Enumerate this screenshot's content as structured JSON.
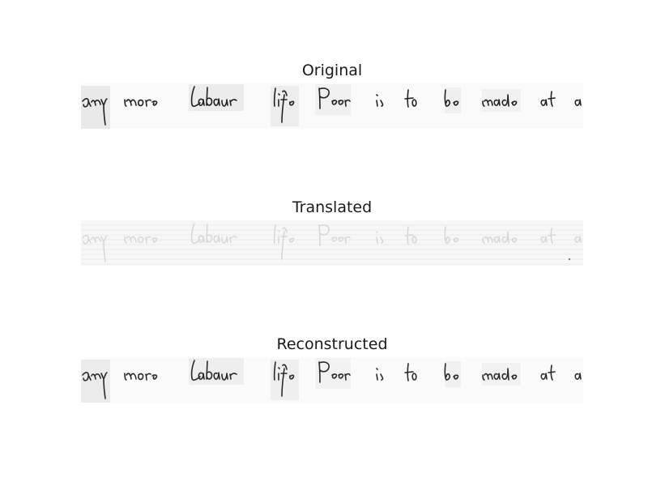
{
  "panels": [
    {
      "title": "Original",
      "handwriting": "any more Labour life Peers is to be made at a"
    },
    {
      "title": "Translated",
      "handwriting": "any more Labour life Peers is to be made at a"
    },
    {
      "title": "Reconstructed",
      "handwriting": "any more Labour life Peers is to be made at a"
    }
  ]
}
